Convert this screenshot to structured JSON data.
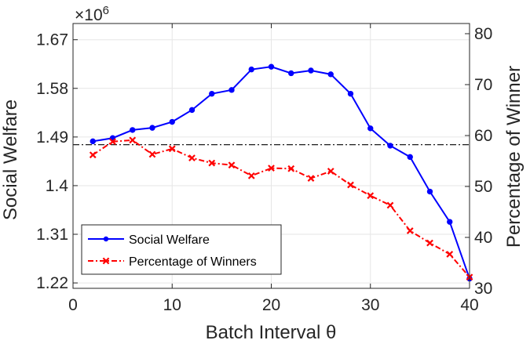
{
  "chart_data": {
    "type": "line",
    "xlabel": "Batch Interval θ",
    "ylabel_left": "Social Welfare",
    "ylabel_right": "Percentage of Winner",
    "left_exponent_label": "×10",
    "left_exponent_power": "6",
    "xlim": [
      0,
      40
    ],
    "ylim_left": [
      1.21,
      1.7
    ],
    "ylim_right": [
      30,
      82
    ],
    "x_ticks": [
      "0",
      "10",
      "20",
      "30",
      "40"
    ],
    "x_tick_values": [
      0,
      10,
      20,
      30,
      40
    ],
    "y_left_ticks": [
      "1.22",
      "1.31",
      "1.4",
      "1.49",
      "1.58",
      "1.67"
    ],
    "y_left_tick_values": [
      1.22,
      1.31,
      1.4,
      1.49,
      1.58,
      1.67
    ],
    "y_right_ticks": [
      "30",
      "40",
      "50",
      "60",
      "70",
      "80"
    ],
    "y_right_tick_values": [
      30,
      40,
      50,
      60,
      70,
      80
    ],
    "grid": true,
    "legend_position": "bottom-left",
    "reference_line": {
      "axis": "right",
      "value": 58.2,
      "color": "#000000",
      "style": "dash-dot"
    },
    "series": [
      {
        "name": "Social Welfare",
        "axis": "left",
        "color": "#0000ff",
        "marker": "circle",
        "line_style": "solid",
        "x": [
          2,
          4,
          6,
          8,
          10,
          12,
          14,
          16,
          18,
          20,
          22,
          24,
          26,
          28,
          30,
          32,
          34,
          36,
          38,
          40
        ],
        "values": [
          1.482,
          1.488,
          1.503,
          1.507,
          1.518,
          1.54,
          1.57,
          1.577,
          1.615,
          1.62,
          1.608,
          1.613,
          1.606,
          1.57,
          1.506,
          1.474,
          1.453,
          1.389,
          1.333,
          1.228
        ]
      },
      {
        "name": "Percentage of Winners",
        "axis": "right",
        "color": "#ff0000",
        "marker": "x",
        "line_style": "dash-dot",
        "x": [
          2,
          4,
          6,
          8,
          10,
          12,
          14,
          16,
          18,
          20,
          22,
          24,
          26,
          28,
          30,
          32,
          34,
          36,
          38,
          40
        ],
        "values": [
          56.2,
          58.8,
          59.1,
          56.3,
          57.4,
          55.6,
          54.6,
          54.2,
          52.1,
          53.6,
          53.5,
          51.6,
          53.0,
          50.3,
          48.2,
          46.3,
          41.3,
          38.9,
          36.7,
          32.2
        ]
      }
    ]
  }
}
